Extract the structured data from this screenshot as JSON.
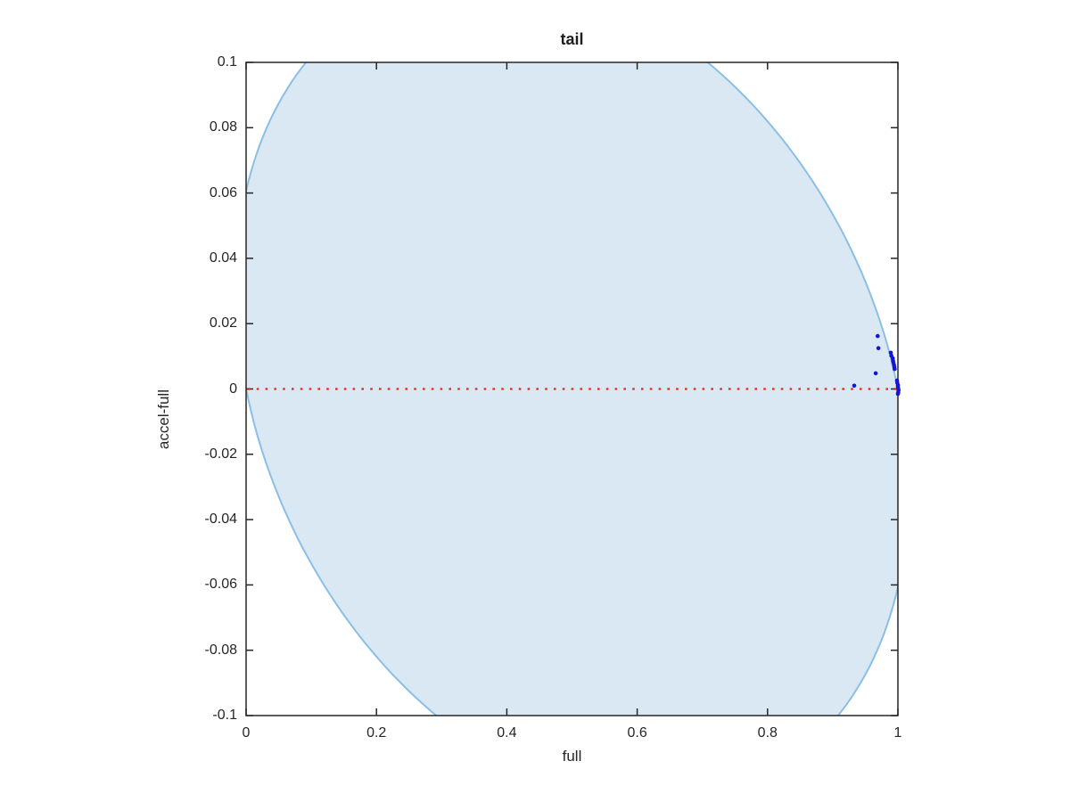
{
  "figure": {
    "background": "#ffffff"
  },
  "chart_data": {
    "type": "scatter",
    "title": "tail",
    "xlabel": "full",
    "ylabel": "accel-full",
    "xlim": [
      0,
      1
    ],
    "ylim": [
      -0.1,
      0.1
    ],
    "grid": false,
    "legend": "none",
    "xticks": [
      0,
      0.2,
      0.4,
      0.6,
      0.8,
      1
    ],
    "xtick_labels": [
      "0",
      "0.2",
      "0.4",
      "0.6",
      "0.8",
      "1"
    ],
    "yticks": [
      0.1,
      0.08,
      0.06,
      0.04,
      0.02,
      0,
      -0.02,
      -0.04,
      -0.06,
      -0.08,
      -0.1
    ],
    "ytick_labels": [
      "0.1",
      "0.08",
      "0.06",
      "0.04",
      "0.02",
      "0",
      "-0.02",
      "-0.04",
      "-0.06",
      "-0.08",
      "-0.1"
    ],
    "axis_color": "#262626",
    "region": {
      "name": "feasible-region-ellipse",
      "shape": "sheared-ellipse",
      "cx": 0.5,
      "cy": 0.0,
      "rx": 0.5,
      "ry": 0.127,
      "shear_x_per_y": -1.0,
      "fill": "#dae8f4",
      "stroke": "#8bbfe4",
      "stroke_width": 2,
      "top_crossings_at_y0p1": [
        0.092,
        0.708
      ],
      "bottom_crossings_at_ym0p1": [
        0.292,
        0.908
      ],
      "left_crossings_at_x0": [
        0.0,
        0.061
      ]
    },
    "zero_line": {
      "y": 0,
      "x_start": 0,
      "x_end": 1,
      "style": "dotted",
      "color": "#e8332d",
      "dot_size": 2.6,
      "gap": 7.2
    },
    "series": [
      {
        "name": "tail samples",
        "marker": "point",
        "color": "#1515d6",
        "marker_radius": 2.3,
        "points": [
          [
            0.933,
            0.001
          ],
          [
            0.966,
            0.0048
          ],
          [
            0.969,
            0.0162
          ],
          [
            0.97,
            0.0125
          ],
          [
            0.989,
            0.0111
          ],
          [
            0.99,
            0.0102
          ],
          [
            0.992,
            0.0094
          ],
          [
            0.9925,
            0.0087
          ],
          [
            0.993,
            0.0081
          ],
          [
            0.994,
            0.0074
          ],
          [
            0.9945,
            0.0067
          ],
          [
            0.995,
            0.0061
          ],
          [
            0.9986,
            0.0026
          ],
          [
            0.999,
            0.0019
          ],
          [
            1.0,
            0.0012
          ],
          [
            1.0,
            0.0007
          ],
          [
            1.0005,
            0.0001
          ],
          [
            1.001,
            -0.0004
          ],
          [
            1.0005,
            -0.001
          ],
          [
            1.0,
            -0.0015
          ]
        ]
      }
    ]
  }
}
